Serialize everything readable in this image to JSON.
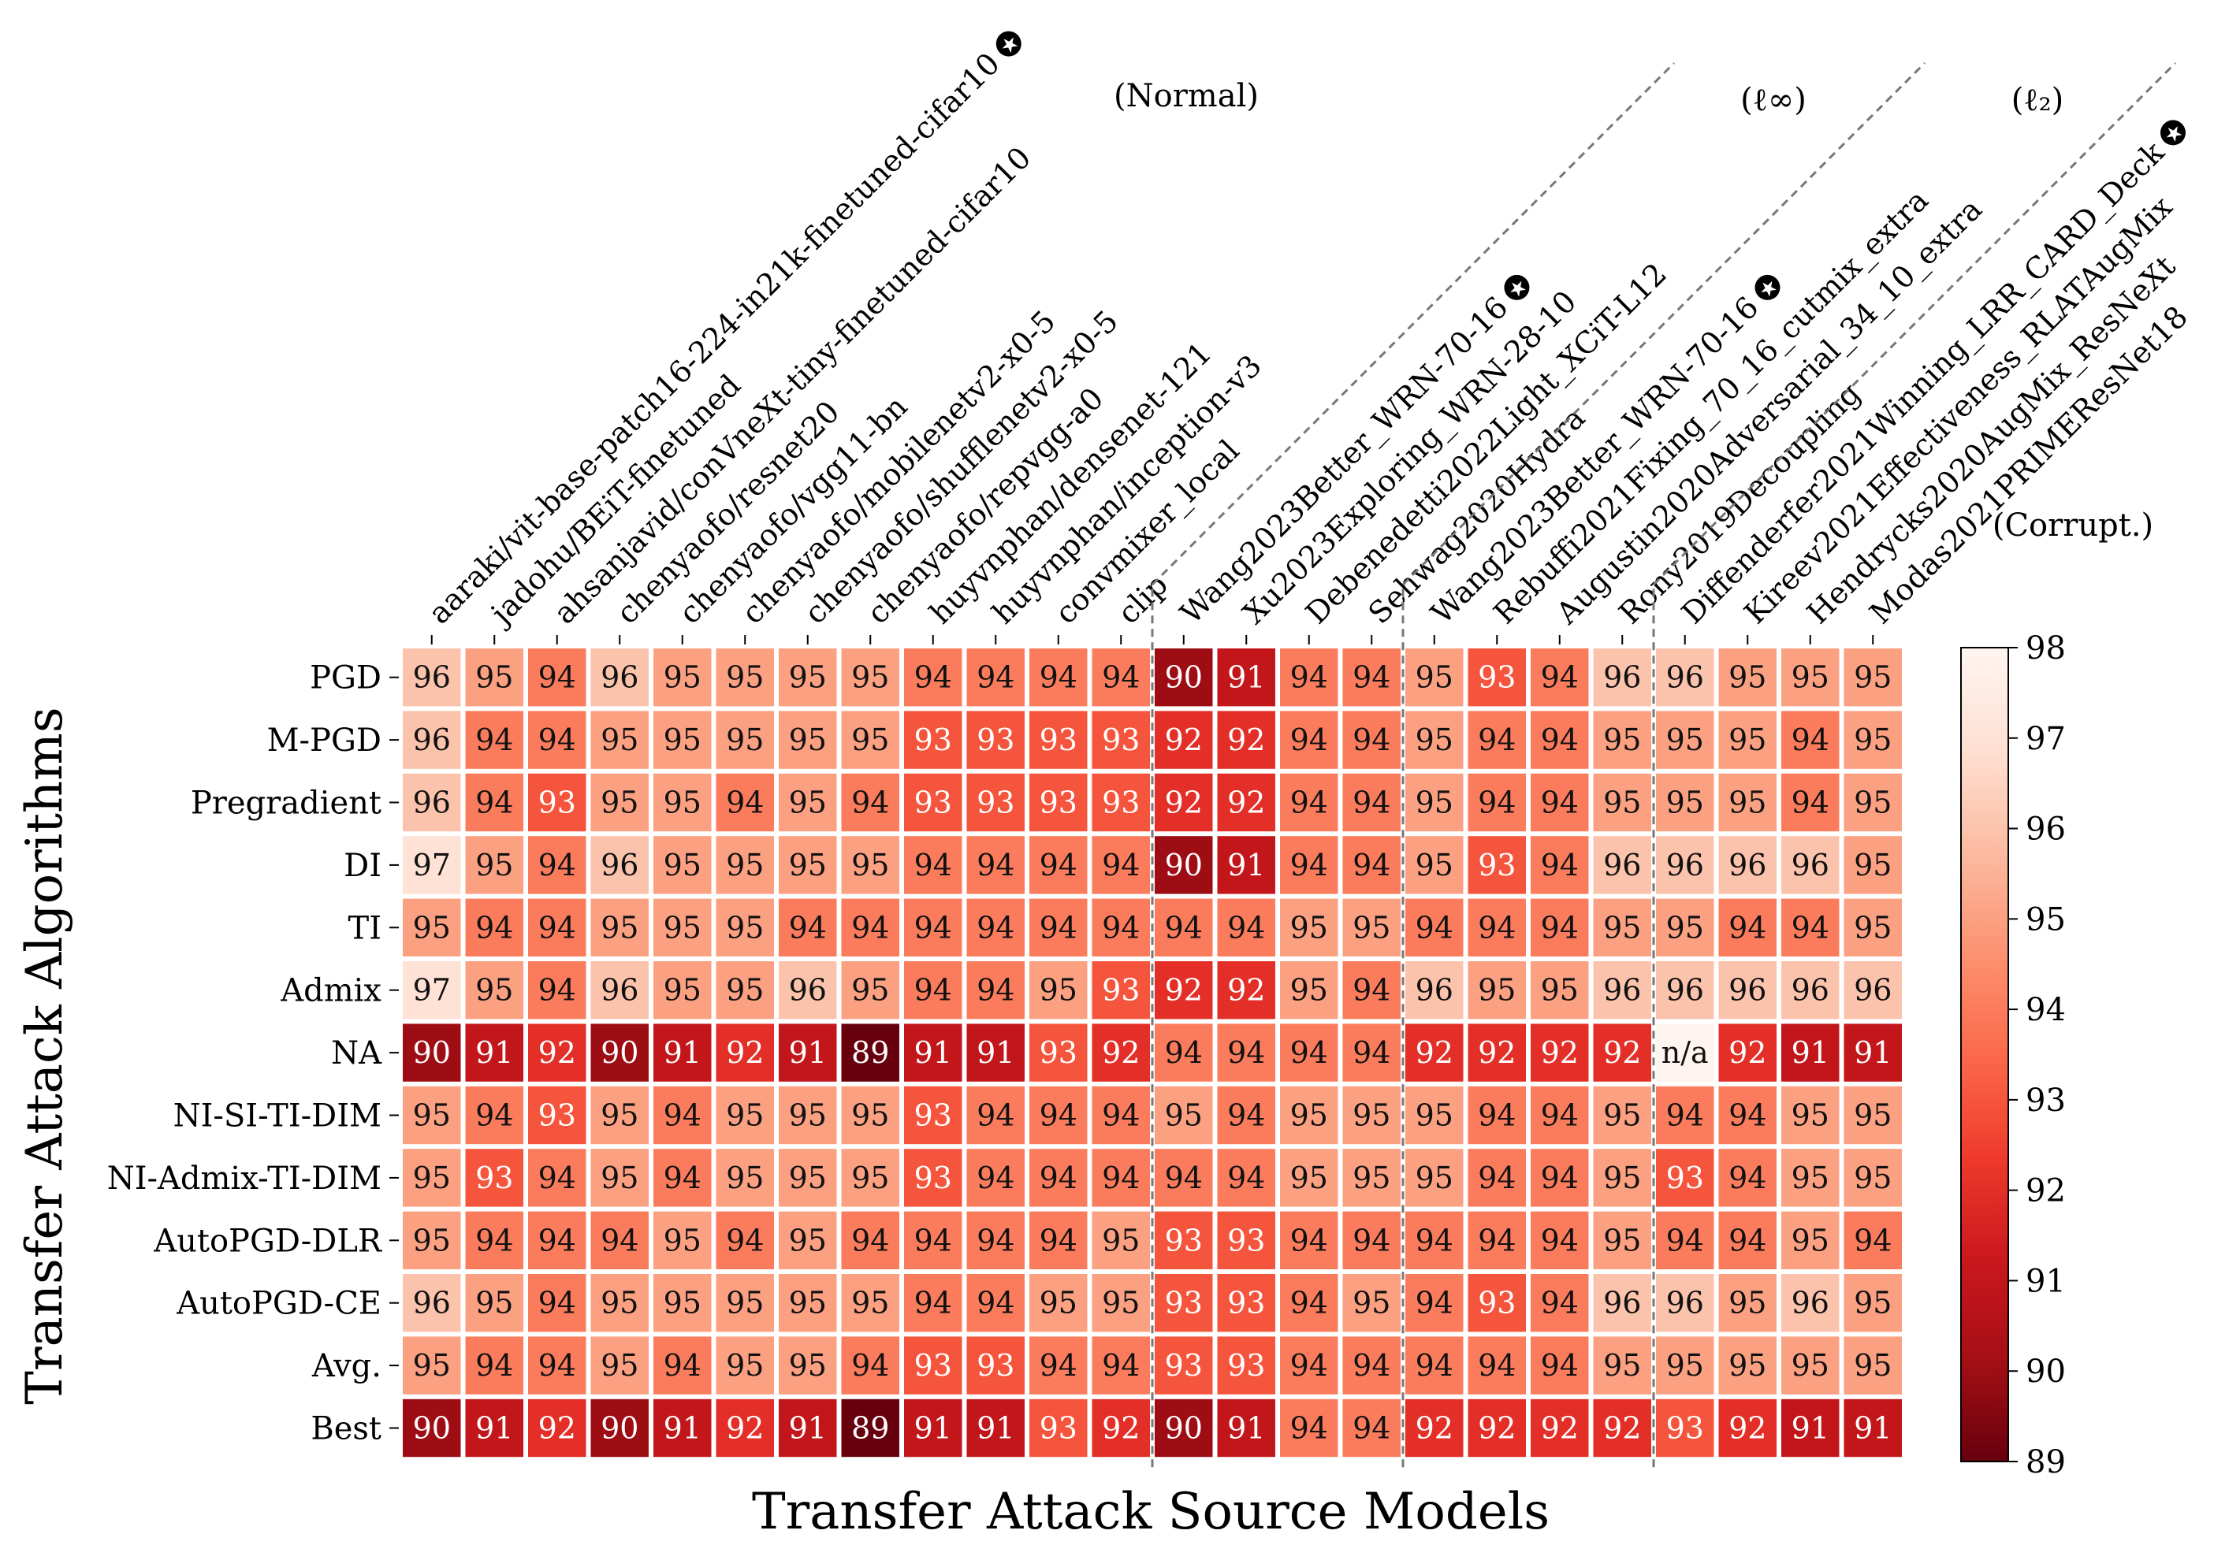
{
  "chart_data": {
    "type": "heatmap",
    "xlabel": "Transfer Attack Source Models",
    "ylabel": "Transfer Attack Algorithms",
    "rows": [
      "PGD",
      "M-PGD",
      "Pregradient",
      "DI",
      "TI",
      "Admix",
      "NA",
      "NI-SI-TI-DIM",
      "NI-Admix-TI-DIM",
      "AutoPGD-DLR",
      "AutoPGD-CE",
      "Avg.",
      "Best"
    ],
    "columns": [
      {
        "name": "aaraki/vit-base-patch16-224-in21k-finetuned-cifar10",
        "star": true
      },
      {
        "name": "jadohu/BEiT-finetuned",
        "star": false
      },
      {
        "name": "ahsanjavid/conVneXt-tiny-finetuned-cifar10",
        "star": false
      },
      {
        "name": "chenyaofo/resnet20",
        "star": false
      },
      {
        "name": "chenyaofo/vgg11-bn",
        "star": false
      },
      {
        "name": "chenyaofo/mobilenetv2-x0-5",
        "star": false
      },
      {
        "name": "chenyaofo/shufflenetv2-x0-5",
        "star": false
      },
      {
        "name": "chenyaofo/repvgg-a0",
        "star": false
      },
      {
        "name": "huyvnphan/densenet-121",
        "star": false
      },
      {
        "name": "huyvnphan/inception-v3",
        "star": false
      },
      {
        "name": "convmixer_local",
        "star": false
      },
      {
        "name": "clip",
        "star": false
      },
      {
        "name": "Wang2023Better_WRN-70-16",
        "star": true
      },
      {
        "name": "Xu2023Exploring_WRN-28-10",
        "star": false
      },
      {
        "name": "Debenedetti2022Light_XCiT-L12",
        "star": false
      },
      {
        "name": "Sehwag2020Hydra",
        "star": false
      },
      {
        "name": "Wang2023Better_WRN-70-16",
        "star": true
      },
      {
        "name": "Rebuffi2021Fixing_70_16_cutmix_extra",
        "star": false
      },
      {
        "name": "Augustin2020Adversarial_34_10_extra",
        "star": false
      },
      {
        "name": "Rony2019Decoupling",
        "star": false
      },
      {
        "name": "Diffenderfer2021Winning_LRR_CARD_Deck",
        "star": true
      },
      {
        "name": "Kireev2021Effectiveness_RLATAugMix",
        "star": false
      },
      {
        "name": "Hendrycks2020AugMix_ResNeXt",
        "star": false
      },
      {
        "name": "Modas2021PRIMEResNet18",
        "star": false
      }
    ],
    "groups": [
      {
        "label": "(Normal)",
        "start": 0,
        "end": 11
      },
      {
        "label": "(ℓ∞)",
        "start": 12,
        "end": 15
      },
      {
        "label": "(ℓ₂)",
        "start": 16,
        "end": 19
      },
      {
        "label": "(Corrupt.)",
        "start": 20,
        "end": 23
      }
    ],
    "values": [
      [
        96,
        95,
        94,
        96,
        95,
        95,
        95,
        95,
        94,
        94,
        94,
        94,
        90,
        91,
        94,
        94,
        95,
        93,
        94,
        96,
        96,
        95,
        95,
        95
      ],
      [
        96,
        94,
        94,
        95,
        95,
        95,
        95,
        95,
        93,
        93,
        93,
        93,
        92,
        92,
        94,
        94,
        95,
        94,
        94,
        95,
        95,
        95,
        94,
        95
      ],
      [
        96,
        94,
        93,
        95,
        95,
        94,
        95,
        94,
        93,
        93,
        93,
        93,
        92,
        92,
        94,
        94,
        95,
        94,
        94,
        95,
        95,
        95,
        94,
        95
      ],
      [
        97,
        95,
        94,
        96,
        95,
        95,
        95,
        95,
        94,
        94,
        94,
        94,
        90,
        91,
        94,
        94,
        95,
        93,
        94,
        96,
        96,
        96,
        96,
        95
      ],
      [
        95,
        94,
        94,
        95,
        95,
        95,
        94,
        94,
        94,
        94,
        94,
        94,
        94,
        94,
        95,
        95,
        94,
        94,
        94,
        95,
        95,
        94,
        94,
        95
      ],
      [
        97,
        95,
        94,
        96,
        95,
        95,
        96,
        95,
        94,
        94,
        95,
        93,
        92,
        92,
        95,
        94,
        96,
        95,
        95,
        96,
        96,
        96,
        96,
        96
      ],
      [
        90,
        91,
        92,
        90,
        91,
        92,
        91,
        89,
        91,
        91,
        93,
        92,
        94,
        94,
        94,
        94,
        92,
        92,
        92,
        92,
        null,
        92,
        91,
        91
      ],
      [
        95,
        94,
        93,
        95,
        94,
        95,
        95,
        95,
        93,
        94,
        94,
        94,
        95,
        94,
        95,
        95,
        95,
        94,
        94,
        95,
        94,
        94,
        95,
        95
      ],
      [
        95,
        93,
        94,
        95,
        94,
        95,
        95,
        95,
        93,
        94,
        94,
        94,
        94,
        94,
        95,
        95,
        95,
        94,
        94,
        95,
        93,
        94,
        95,
        95
      ],
      [
        95,
        94,
        94,
        94,
        95,
        94,
        95,
        94,
        94,
        94,
        94,
        95,
        93,
        93,
        94,
        94,
        94,
        94,
        94,
        95,
        94,
        94,
        95,
        94
      ],
      [
        96,
        95,
        94,
        95,
        95,
        95,
        95,
        95,
        94,
        94,
        95,
        95,
        93,
        93,
        94,
        95,
        94,
        93,
        94,
        96,
        96,
        95,
        96,
        95
      ],
      [
        95,
        94,
        94,
        95,
        94,
        95,
        95,
        94,
        93,
        93,
        94,
        94,
        93,
        93,
        94,
        94,
        94,
        94,
        94,
        95,
        95,
        95,
        95,
        95
      ],
      [
        90,
        91,
        92,
        90,
        91,
        92,
        91,
        89,
        91,
        91,
        93,
        92,
        90,
        91,
        94,
        94,
        92,
        92,
        92,
        92,
        93,
        92,
        91,
        91
      ]
    ],
    "missing_label": "n/a",
    "colorbar": {
      "min": 89,
      "max": 98,
      "ticks": [
        89,
        90,
        91,
        92,
        93,
        94,
        95,
        96,
        97,
        98
      ],
      "colormap": "Reds_r"
    },
    "colors": {
      "low": "#67000d",
      "high": "#fff5f0",
      "separator": "#777777"
    }
  }
}
